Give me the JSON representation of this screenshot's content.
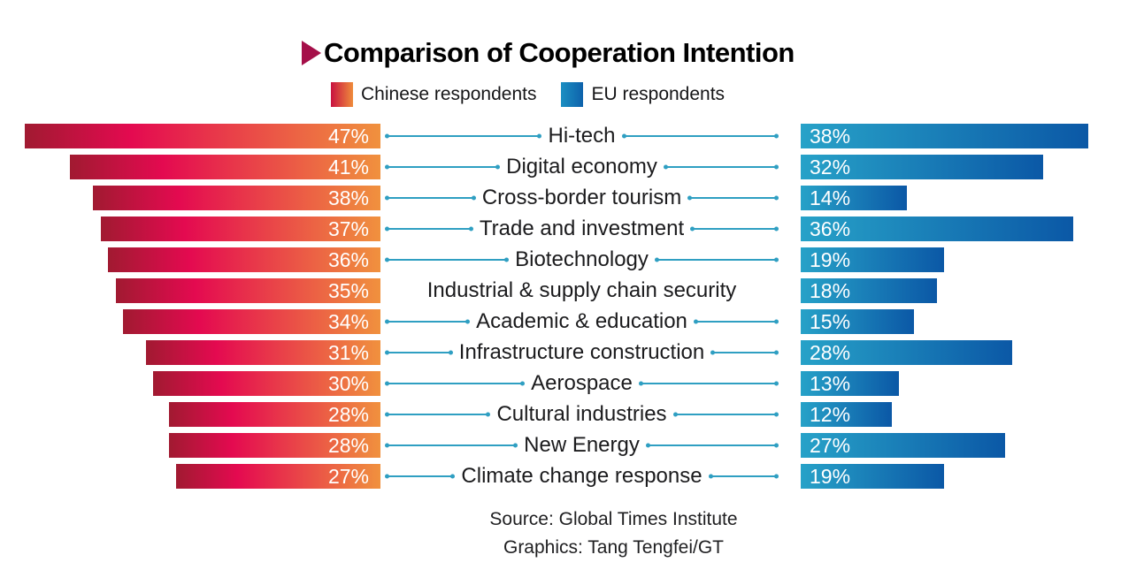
{
  "title": {
    "text": "Comparison of Cooperation Intention",
    "pointer_color": "#a50f49"
  },
  "legend": [
    {
      "label": "Chinese respondents",
      "gradient": [
        "#c81240",
        "#ef8c3c"
      ]
    },
    {
      "label": "EU respondents",
      "gradient": [
        "#1b8fc2",
        "#0e62ab"
      ]
    }
  ],
  "chart_data": {
    "type": "bar",
    "orientation": "bidirectional-horizontal",
    "unit": "%",
    "categories": [
      "Hi-tech",
      "Digital economy",
      "Cross-border tourism",
      "Trade and investment",
      "Biotechnology",
      "Industrial & supply chain security",
      "Academic & education",
      "Infrastructure construction",
      "Aerospace",
      "Cultural industries",
      "New Energy",
      "Climate change response"
    ],
    "series": [
      {
        "name": "Chinese respondents",
        "side": "left",
        "values": [
          47,
          41,
          38,
          37,
          36,
          35,
          34,
          31,
          30,
          28,
          28,
          27
        ],
        "gradient": [
          "#a11a31",
          "#e40a50",
          "#f0913e"
        ]
      },
      {
        "name": "EU respondents",
        "side": "right",
        "values": [
          38,
          32,
          14,
          36,
          19,
          18,
          15,
          28,
          13,
          12,
          27,
          19
        ],
        "gradient": [
          "#27a2c8",
          "#0b58a6"
        ]
      }
    ],
    "connector_line_color": "#2f9fc2",
    "rows_without_connector_lines": [
      "Industrial & supply chain security"
    ],
    "value_range": [
      0,
      47
    ]
  },
  "footer": {
    "source": "Source: Global Times Institute",
    "credit": "Graphics: Tang Tengfei/GT"
  }
}
